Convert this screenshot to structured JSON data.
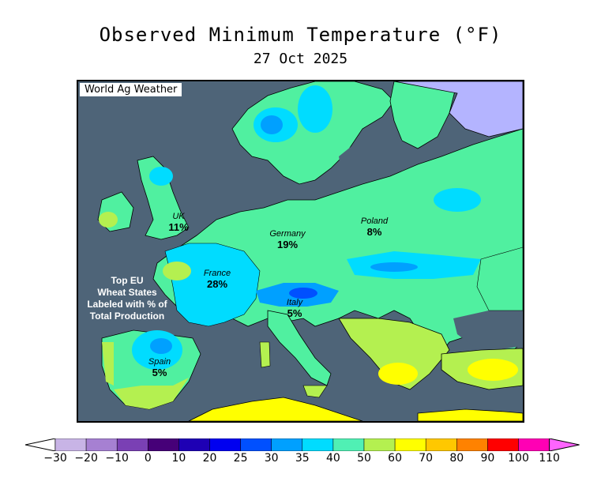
{
  "title": "Observed Minimum Temperature (°F)",
  "subtitle": "27 Oct 2025",
  "source": "World Ag Weather",
  "note_lines": [
    "Top EU",
    "Wheat States",
    "Labeled with % of",
    "Total Production"
  ],
  "regions": [
    {
      "name": "UK",
      "pct": "11%"
    },
    {
      "name": "Germany",
      "pct": "19%"
    },
    {
      "name": "Poland",
      "pct": "8%"
    },
    {
      "name": "France",
      "pct": "28%"
    },
    {
      "name": "Italy",
      "pct": "5%"
    },
    {
      "name": "Spain",
      "pct": "5%"
    }
  ],
  "legend": {
    "ticks": [
      "-30",
      "-20",
      "-10",
      "0",
      "10",
      "20",
      "25",
      "30",
      "35",
      "40",
      "50",
      "60",
      "70",
      "80",
      "90",
      "100",
      "110"
    ],
    "colors": [
      "#c8b4e6",
      "#a680d2",
      "#7a40b4",
      "#460078",
      "#1e00b4",
      "#0000f0",
      "#0050ff",
      "#00a0ff",
      "#00dcff",
      "#50f0b4",
      "#b4f050",
      "#ffff00",
      "#ffc800",
      "#ff8200",
      "#ff0000",
      "#ff00b4"
    ],
    "under_color": "#ffffff",
    "over_color": "#ff64ff"
  },
  "colors": {
    "water": "#4e6478",
    "land_warm": "#50f0a0",
    "land_cool": "#00dcff",
    "land_cold": "#00a0ff",
    "land_mild": "#b4f050",
    "land_hot": "#ffff00"
  }
}
